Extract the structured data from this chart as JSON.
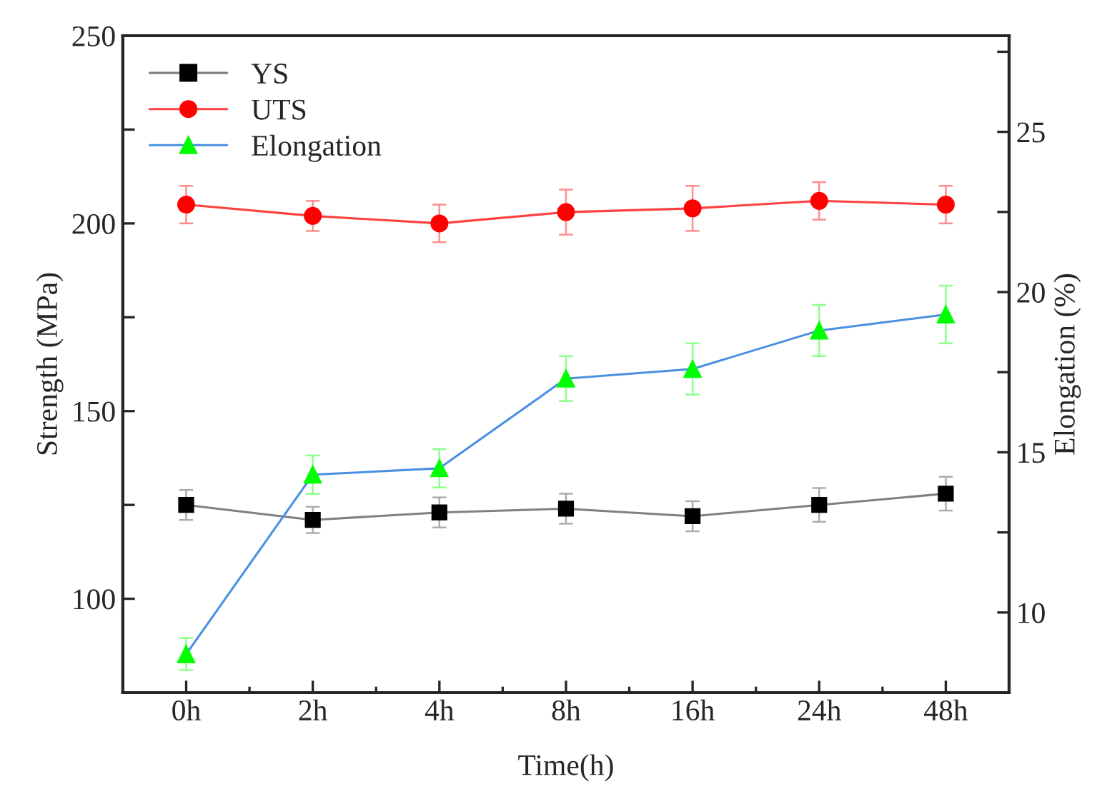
{
  "chart_data": {
    "type": "line",
    "xlabel": "Time(h)",
    "ylabel": "Strength (MPa)",
    "y2label": "Elongation (%)",
    "categories": [
      "0h",
      "2h",
      "4h",
      "8h",
      "16h",
      "24h",
      "48h"
    ],
    "series": [
      {
        "name": "YS",
        "color": "#000000",
        "marker": "square",
        "values": [
          125,
          121,
          123,
          124,
          122,
          125,
          128
        ],
        "errors": [
          4,
          3.5,
          4,
          4,
          4,
          4.5,
          4.5
        ]
      },
      {
        "name": "UTS",
        "color": "#ff0000",
        "marker": "circle",
        "values": [
          205,
          202,
          200,
          203,
          204,
          206,
          205
        ],
        "errors": [
          5,
          4,
          5,
          6,
          6,
          5,
          5
        ]
      },
      {
        "name": "Elongation",
        "color": "#00ff00",
        "marker": "triangle",
        "axis": "y2",
        "values": [
          8.7,
          14.3,
          14.5,
          17.3,
          17.6,
          18.8,
          19.3
        ],
        "errors": [
          0.5,
          0.6,
          0.6,
          0.7,
          0.8,
          0.8,
          0.9
        ]
      }
    ],
    "ylim": [
      75,
      250
    ],
    "yticks": [
      {
        "value": 75,
        "label": null
      },
      100,
      {
        "value": 125,
        "label": null
      },
      150,
      {
        "value": 175,
        "label": null
      },
      200,
      {
        "value": 225,
        "label": null
      },
      250
    ],
    "y2lim": [
      7.5,
      28
    ],
    "y2ticks": [
      {
        "value": 7.5,
        "label": null
      },
      10,
      {
        "value": 12.5,
        "label": null
      },
      15,
      {
        "value": 17.5,
        "label": null
      },
      20,
      {
        "value": 22.5,
        "label": null
      },
      25,
      {
        "value": 27.5,
        "label": null
      }
    ],
    "legend": "top left",
    "grid": false,
    "line_style": "solid"
  }
}
